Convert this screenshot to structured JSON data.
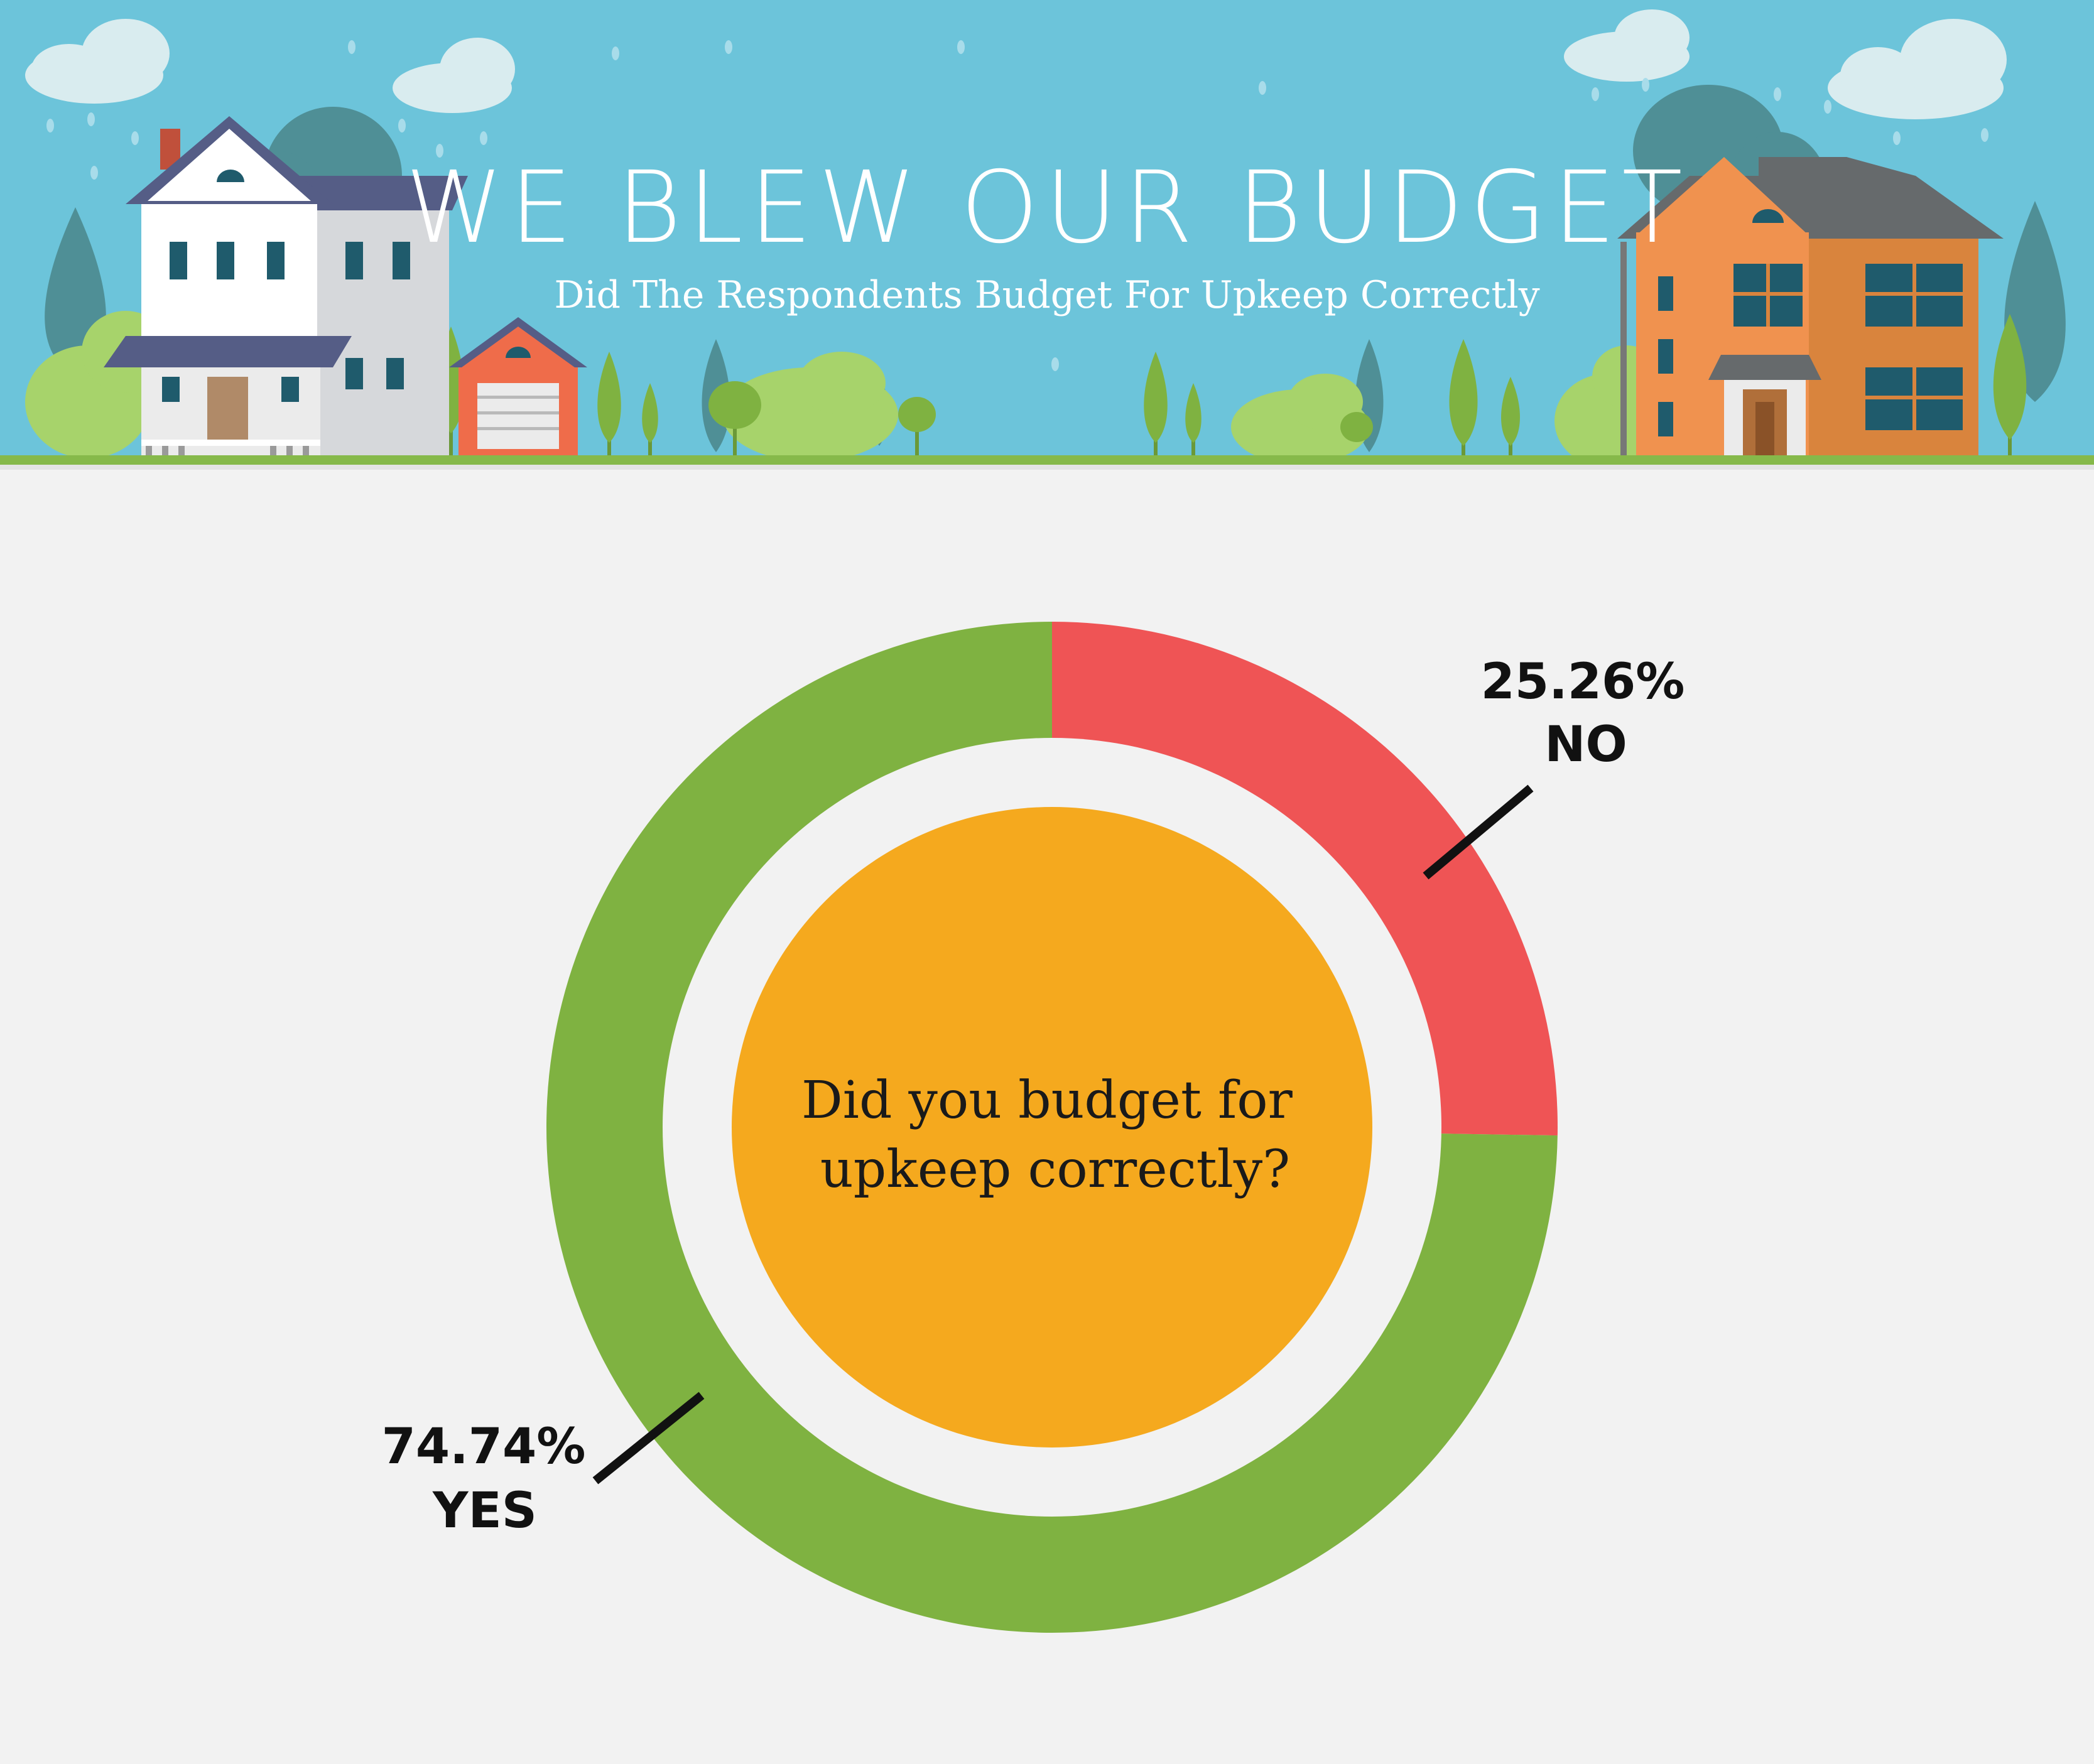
{
  "header": {
    "title": "WE BLEW OUR BUDGET",
    "subtitle": "Did The Respondents Budget For Upkeep Correctly"
  },
  "colors": {
    "sky": "#6cc4da",
    "page_background": "#f2f2f2",
    "no": "#ef5455",
    "yes": "#7fb241",
    "center": "#f5a91e",
    "ground": "#86b94a"
  },
  "chart_data": {
    "type": "pie",
    "title": "",
    "center_text_lines": [
      "Did you budget for",
      "upkeep correctly?"
    ],
    "slices": [
      {
        "label": "NO",
        "value": 25.26,
        "value_label": "25.26%",
        "color": "#ef5455"
      },
      {
        "label": "YES",
        "value": 74.74,
        "value_label": "74.74%",
        "color": "#7fb241"
      }
    ]
  }
}
